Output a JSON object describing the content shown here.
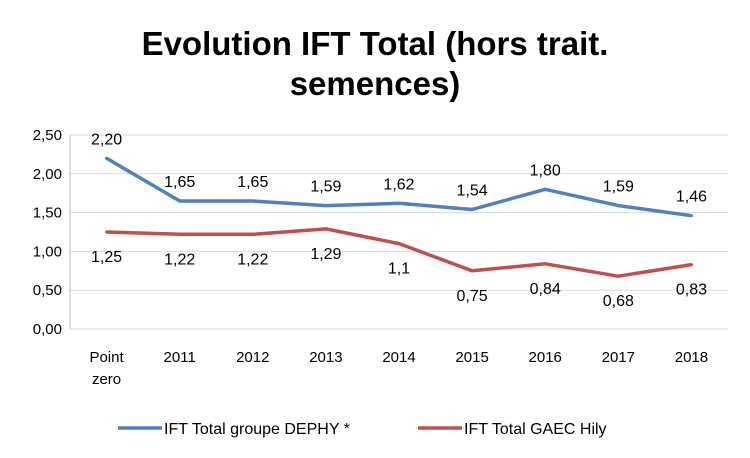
{
  "chart_data": {
    "type": "line",
    "title_lines": [
      "Evolution IFT Total (hors trait.",
      "semences)"
    ],
    "categories": [
      "Point zero",
      "2011",
      "2012",
      "2013",
      "2014",
      "2015",
      "2016",
      "2017",
      "2018"
    ],
    "category_lines": [
      [
        "Point",
        "zero"
      ],
      [
        "2011"
      ],
      [
        "2012"
      ],
      [
        "2013"
      ],
      [
        "2014"
      ],
      [
        "2015"
      ],
      [
        "2016"
      ],
      [
        "2017"
      ],
      [
        "2018"
      ]
    ],
    "ylim": [
      0,
      2.5
    ],
    "yticks": [
      0,
      0.5,
      1.0,
      1.5,
      2.0,
      2.5
    ],
    "ytick_labels": [
      "0,00",
      "0,50",
      "1,00",
      "1,50",
      "2,00",
      "2,50"
    ],
    "grid": true,
    "legend_position": "bottom",
    "series": [
      {
        "name": "IFT Total groupe DEPHY *",
        "color": "#4f81bd",
        "values": [
          2.2,
          1.65,
          1.65,
          1.59,
          1.62,
          1.54,
          1.8,
          1.59,
          1.46
        ],
        "labels": [
          "2,20",
          "1,65",
          "1,65",
          "1,59",
          "1,62",
          "1,54",
          "1,80",
          "1,59",
          "1,46"
        ],
        "label_position": "above"
      },
      {
        "name": "IFT Total GAEC Hily",
        "color": "#c0504d",
        "values": [
          1.25,
          1.22,
          1.22,
          1.29,
          1.1,
          0.75,
          0.84,
          0.68,
          0.83
        ],
        "labels": [
          "1,25",
          "1,22",
          "1,22",
          "1,29",
          "1,1",
          "0,75",
          "0,84",
          "0,68",
          "0,83"
        ],
        "label_position": "below"
      }
    ]
  }
}
